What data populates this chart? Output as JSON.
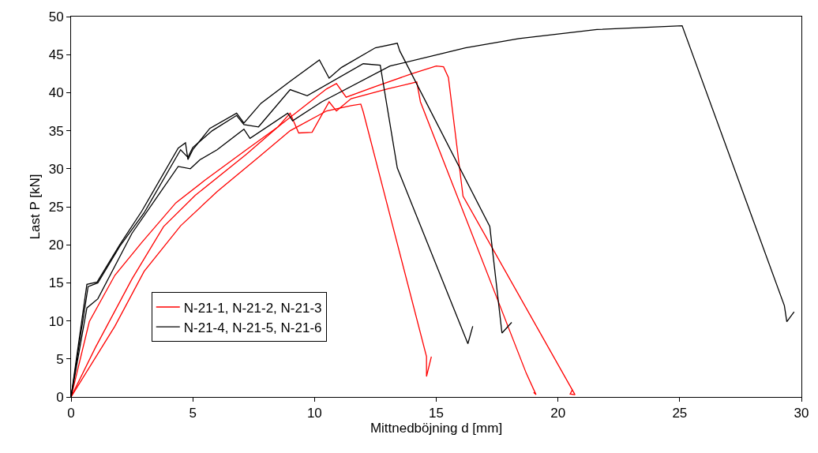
{
  "chart_data": {
    "type": "line",
    "xlabel": "Mittnedböjning d [mm]",
    "ylabel": "Last P [kN]",
    "xlim": [
      0,
      30
    ],
    "ylim": [
      0,
      50
    ],
    "xticks": [
      0,
      5,
      10,
      15,
      20,
      25,
      30
    ],
    "yticks": [
      0,
      5,
      10,
      15,
      20,
      25,
      30,
      35,
      40,
      45,
      50
    ],
    "grid": false,
    "legend": "bottom left",
    "marker": "none",
    "line_style": "solid",
    "series": [
      {
        "name": "N-21-1, N-21-2, N-21-3",
        "color": "#ff0000",
        "x": [
          0,
          0.75,
          1.8,
          2.9,
          4.3,
          5.5,
          7.2,
          8.5,
          9.7,
          10.5,
          10.9,
          11.3,
          12.5,
          14.0,
          15.0,
          15.3,
          15.5,
          16.1,
          20.7,
          20.5,
          20.6
        ],
        "values": [
          0,
          9.9,
          16,
          20.3,
          25.5,
          28.5,
          32.5,
          35.5,
          38.5,
          40.5,
          41.2,
          39.4,
          40.8,
          42.5,
          43.5,
          43.4,
          42,
          26.4,
          0.3,
          0.4,
          1.0
        ]
      },
      {
        "color": "#ff0000",
        "x": [
          0,
          1.0,
          2.5,
          3.8,
          5.1,
          7.2,
          8.5,
          9.0,
          9.35,
          9.9,
          10.6,
          10.9,
          11.5,
          13.0,
          14.2,
          14.35,
          18.7,
          19.1,
          19.0
        ],
        "values": [
          0,
          6.5,
          15.5,
          22.4,
          26.5,
          31.9,
          35.5,
          37.3,
          34.7,
          34.8,
          38.8,
          37.6,
          39.2,
          40.5,
          41.4,
          38.8,
          3.1,
          0.3,
          0.6
        ]
      },
      {
        "color": "#ff0000",
        "x": [
          0,
          1.8,
          3.0,
          4.5,
          6.0,
          7.7,
          9.0,
          10.5,
          11.5,
          11.9,
          12.0,
          14.6,
          14.6,
          14.8
        ],
        "values": [
          0,
          9.3,
          16.5,
          22.5,
          27,
          31.5,
          35,
          37.6,
          38.3,
          38.5,
          37.5,
          5.3,
          2.7,
          5.3
        ]
      },
      {
        "name": "N-21-4, N-21-5, N-21-6",
        "color": "#000000",
        "x": [
          0,
          0.65,
          1.07,
          2.0,
          2.9,
          4.4,
          4.7,
          4.8,
          5.0,
          5.7,
          6.8,
          7.1,
          7.8,
          9.0,
          10.2,
          10.6,
          11.1,
          12.5,
          13.4,
          13.5,
          17.2,
          17.7,
          18.1
        ],
        "values": [
          0,
          14.8,
          15.1,
          20,
          24.4,
          32.7,
          33.4,
          31.2,
          32.5,
          35.3,
          37.3,
          36.0,
          38.6,
          41.5,
          44.3,
          41.9,
          43.3,
          45.9,
          46.5,
          45.5,
          22.4,
          8.4,
          9.8
        ]
      },
      {
        "color": "#000000",
        "x": [
          0,
          0.7,
          1.1,
          2.0,
          3.0,
          4.5,
          4.8,
          5.0,
          5.8,
          6.8,
          7.1,
          7.7,
          9.0,
          9.7,
          12.0,
          12.7,
          13.4,
          16.3,
          16.5
        ],
        "values": [
          0,
          14.5,
          15.0,
          19.8,
          24.2,
          32.5,
          31.5,
          32.8,
          35,
          37,
          35.8,
          35.5,
          40.4,
          39.6,
          43.8,
          43.6,
          30.1,
          7.0,
          9.3
        ]
      },
      {
        "color": "#000000",
        "x": [
          0,
          0.65,
          1.1,
          2.5,
          4.4,
          4.9,
          5.3,
          6.0,
          7.1,
          7.35,
          8.9,
          9.1,
          10.3,
          13.1,
          15.2,
          16.2,
          18.4,
          21.6,
          25.1,
          29.3,
          29.4,
          29.7
        ],
        "values": [
          0,
          11.7,
          12.9,
          21.5,
          30.3,
          30.0,
          31.2,
          32.5,
          35.2,
          34.0,
          37.3,
          36.3,
          38.8,
          43.5,
          45.1,
          45.9,
          47.1,
          48.3,
          48.8,
          12.0,
          9.9,
          11.2
        ]
      }
    ]
  }
}
